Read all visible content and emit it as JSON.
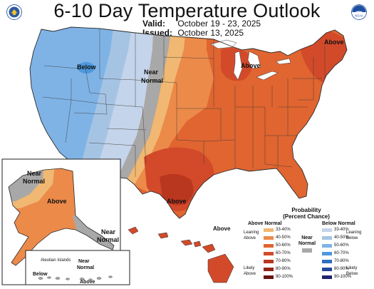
{
  "header": {
    "title": "6-10 Day Temperature Outlook",
    "valid_label": "Valid:",
    "valid_dates": "October 19 - 23, 2025",
    "issued_label": "Issued:",
    "issued_date": "October 13, 2025"
  },
  "logos": {
    "left": {
      "icon": "department-of-commerce-seal-icon",
      "color": "#2c5aa0"
    },
    "right": {
      "icon": "noaa-logo-icon",
      "color": "#1f4fa0",
      "text": "NOAA"
    }
  },
  "map_labels": {
    "west_below": "Below",
    "central_near_normal": "Near Normal",
    "great_lakes_above": "Above",
    "northeast_above": "Above",
    "texas_above": "Above",
    "alaska_near_normal_north": "Near Normal",
    "alaska_above": "Above",
    "alaska_near_normal_southeast": "Near Normal",
    "aleutian_islands": "Aleutian Islands",
    "aleutian_below": "Below",
    "aleutian_near_normal": "Near Normal",
    "aleutian_above": "Above",
    "hawaii_above": "Above"
  },
  "legend": {
    "title": "Probability",
    "subtitle": "(Percent Chance)",
    "above_title": "Above Normal",
    "below_title": "Below Normal",
    "near_title": "Near Normal",
    "leaning_above": "Leaning Above",
    "likely_above": "Likely Above",
    "leaning_below": "Leaning Below",
    "likely_below": "Likely Below",
    "ranges": [
      "33-40%",
      "40-50%",
      "50-60%",
      "60-70%",
      "70-80%",
      "80-90%",
      "90-100%"
    ],
    "above_colors": [
      "#f0b872",
      "#ec8a4a",
      "#e06530",
      "#d24a2a",
      "#b9361f",
      "#932414",
      "#6a1410"
    ],
    "below_colors": [
      "#c4d4ea",
      "#a5c4e4",
      "#7fb3e6",
      "#4d98dd",
      "#2e6fc0",
      "#22469c",
      "#1f2470"
    ],
    "near_color": "#a8a8a8"
  },
  "colors": {
    "below_light": "#c4d4ea",
    "below_mid": "#a5c4e4",
    "below_strong": "#7fb3e6",
    "below_core": "#4d98dd",
    "near": "#a8a8a8",
    "above_33": "#f0b872",
    "above_40": "#ec8a4a",
    "above_50": "#e06530",
    "above_60": "#d24a2a",
    "above_70": "#b9361f",
    "lake": "#ffffff",
    "border": "#3a3a3a"
  }
}
